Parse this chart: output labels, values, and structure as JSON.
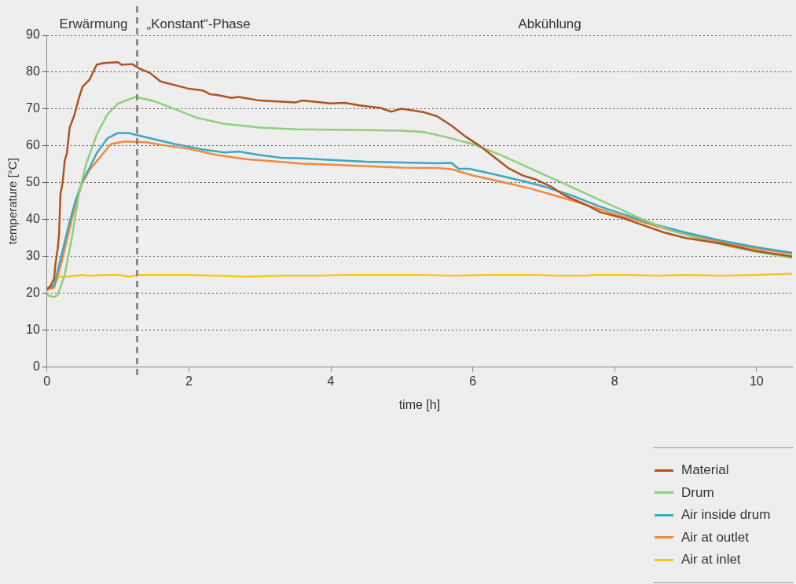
{
  "chart_data": {
    "type": "line",
    "xlabel": "time [h]",
    "ylabel": "temperature [°C]",
    "xlim": [
      0,
      10.5
    ],
    "xticks": [
      0,
      2,
      4,
      6,
      8,
      10
    ],
    "ylim": [
      0,
      90
    ],
    "yticks": [
      0,
      10,
      20,
      30,
      40,
      50,
      60,
      70,
      80,
      90
    ],
    "grid": "y",
    "legend": "bottom right",
    "marker": "none",
    "line_style": "solid",
    "ref_lines": [
      {
        "axis": "x",
        "value": 1.27,
        "color": "#777777",
        "line_style": "dashed"
      }
    ],
    "annotations": [
      "Erwärmung",
      "„Konstant“-Phase",
      "Abkühlung"
    ],
    "series": [
      {
        "name": "Material",
        "color": "#b0531f",
        "x": [
          0,
          0.05,
          0.1,
          0.12,
          0.15,
          0.17,
          0.19,
          0.22,
          0.25,
          0.28,
          0.32,
          0.38,
          0.45,
          0.5,
          0.6,
          0.65,
          0.7,
          0.8,
          1.0,
          1.05,
          1.2,
          1.3,
          1.45,
          1.6,
          1.8,
          2.0,
          2.2,
          2.3,
          2.4,
          2.6,
          2.7,
          3.0,
          3.3,
          3.5,
          3.6,
          4.0,
          4.2,
          4.4,
          4.7,
          4.85,
          5.0,
          5.3,
          5.5,
          5.7,
          5.9,
          6.1,
          6.3,
          6.5,
          6.7,
          6.9,
          7.1,
          7.3,
          7.6,
          7.8,
          8.1,
          8.4,
          8.7,
          9.0,
          9.5,
          10,
          10.5
        ],
        "values": [
          21,
          22,
          24,
          28,
          32,
          36,
          47,
          50,
          56,
          58,
          65,
          68,
          73,
          76,
          78,
          80,
          82,
          82.5,
          82.7,
          82,
          82.2,
          81,
          79.8,
          77.5,
          76.5,
          75.5,
          75,
          74,
          73.8,
          73,
          73.3,
          72.3,
          72,
          71.8,
          72.3,
          71.5,
          71.7,
          71,
          70.3,
          69.3,
          70.1,
          69.2,
          68,
          65.5,
          62.5,
          60,
          57,
          54,
          52,
          50.8,
          49,
          46.5,
          44,
          42,
          40.5,
          38.5,
          36.5,
          35,
          33.5,
          31.5,
          30
        ]
      },
      {
        "name": "Drum",
        "color": "#8fcf7e",
        "x": [
          0,
          0.1,
          0.15,
          0.25,
          0.35,
          0.45,
          0.55,
          0.7,
          0.85,
          1.0,
          1.25,
          1.5,
          1.8,
          2.1,
          2.5,
          3,
          3.5,
          4,
          4.5,
          5.0,
          5.3,
          5.6,
          6.0,
          6.4,
          6.8,
          7.2,
          7.6,
          8.0,
          8.4,
          8.8,
          9.2,
          9.6,
          10,
          10.5
        ],
        "values": [
          19.5,
          19,
          19.5,
          25,
          35,
          47,
          55,
          63,
          68.5,
          71.5,
          73.3,
          72.2,
          70,
          67.7,
          66,
          65,
          64.5,
          64.4,
          64.3,
          64.1,
          63.8,
          62.5,
          60.5,
          57.5,
          54,
          50.5,
          47,
          43.5,
          40,
          37,
          34.8,
          32.8,
          31.2,
          29.6
        ]
      },
      {
        "name": "Air inside drum",
        "color": "#3ba8c4",
        "x": [
          0,
          0.1,
          0.2,
          0.3,
          0.4,
          0.5,
          0.6,
          0.7,
          0.85,
          1.0,
          1.15,
          1.4,
          1.8,
          2.2,
          2.5,
          2.7,
          3.0,
          3.3,
          3.6,
          4.0,
          4.5,
          5.0,
          5.5,
          5.7,
          5.8,
          5.95,
          6.3,
          6.7,
          7.0,
          7.4,
          7.8,
          8.2,
          8.6,
          9.0,
          9.5,
          10,
          10.5
        ],
        "values": [
          21.5,
          22,
          30,
          38,
          45,
          50.5,
          54,
          58,
          62,
          63.5,
          63.5,
          62.3,
          60.5,
          59,
          58.2,
          58.5,
          57.5,
          56.8,
          56.6,
          56.2,
          55.7,
          55.5,
          55.3,
          55.4,
          53.8,
          53.8,
          52.3,
          50.5,
          49,
          46.5,
          43.5,
          41,
          38.5,
          36.5,
          34.3,
          32.5,
          31
        ]
      },
      {
        "name": "Air at outlet",
        "color": "#f08a3c",
        "x": [
          0,
          0.1,
          0.2,
          0.3,
          0.4,
          0.5,
          0.6,
          0.75,
          0.9,
          1.1,
          1.4,
          1.7,
          2.0,
          2.4,
          2.8,
          3.2,
          3.6,
          4.0,
          4.5,
          5.0,
          5.5,
          5.7,
          6.0,
          6.4,
          6.8,
          7.2,
          7.6,
          8.0,
          8.4,
          8.8,
          9.2,
          9.6,
          10,
          10.5
        ],
        "values": [
          21,
          21.5,
          28,
          36,
          44,
          50,
          53.5,
          57,
          60.5,
          61.2,
          61,
          60,
          59.2,
          57.5,
          56.4,
          55.8,
          55.2,
          54.9,
          54.5,
          54.1,
          54,
          53.7,
          52,
          50.3,
          48.5,
          46.3,
          44,
          41.5,
          39.3,
          37,
          35.2,
          33.5,
          32.2,
          30.7
        ]
      },
      {
        "name": "Air at inlet",
        "color": "#f9c51a",
        "x": [
          0,
          0.1,
          0.17,
          0.3,
          0.5,
          0.6,
          0.8,
          1.0,
          1.15,
          1.3,
          1.7,
          2.0,
          2.5,
          2.8,
          3.3,
          3.8,
          4.2,
          4.8,
          5.3,
          5.7,
          6.2,
          6.9,
          7.2,
          7.6,
          7.7,
          8.2,
          8.6,
          9.0,
          9.5,
          10,
          10.5
        ],
        "values": [
          21,
          22.5,
          24.5,
          24.5,
          25,
          24.7,
          25,
          25,
          24.5,
          25,
          25,
          25,
          24.7,
          24.5,
          24.8,
          24.8,
          25,
          25,
          25,
          24.8,
          25,
          25,
          24.8,
          24.8,
          25,
          25,
          24.8,
          25,
          24.8,
          25,
          25.3
        ]
      }
    ]
  }
}
